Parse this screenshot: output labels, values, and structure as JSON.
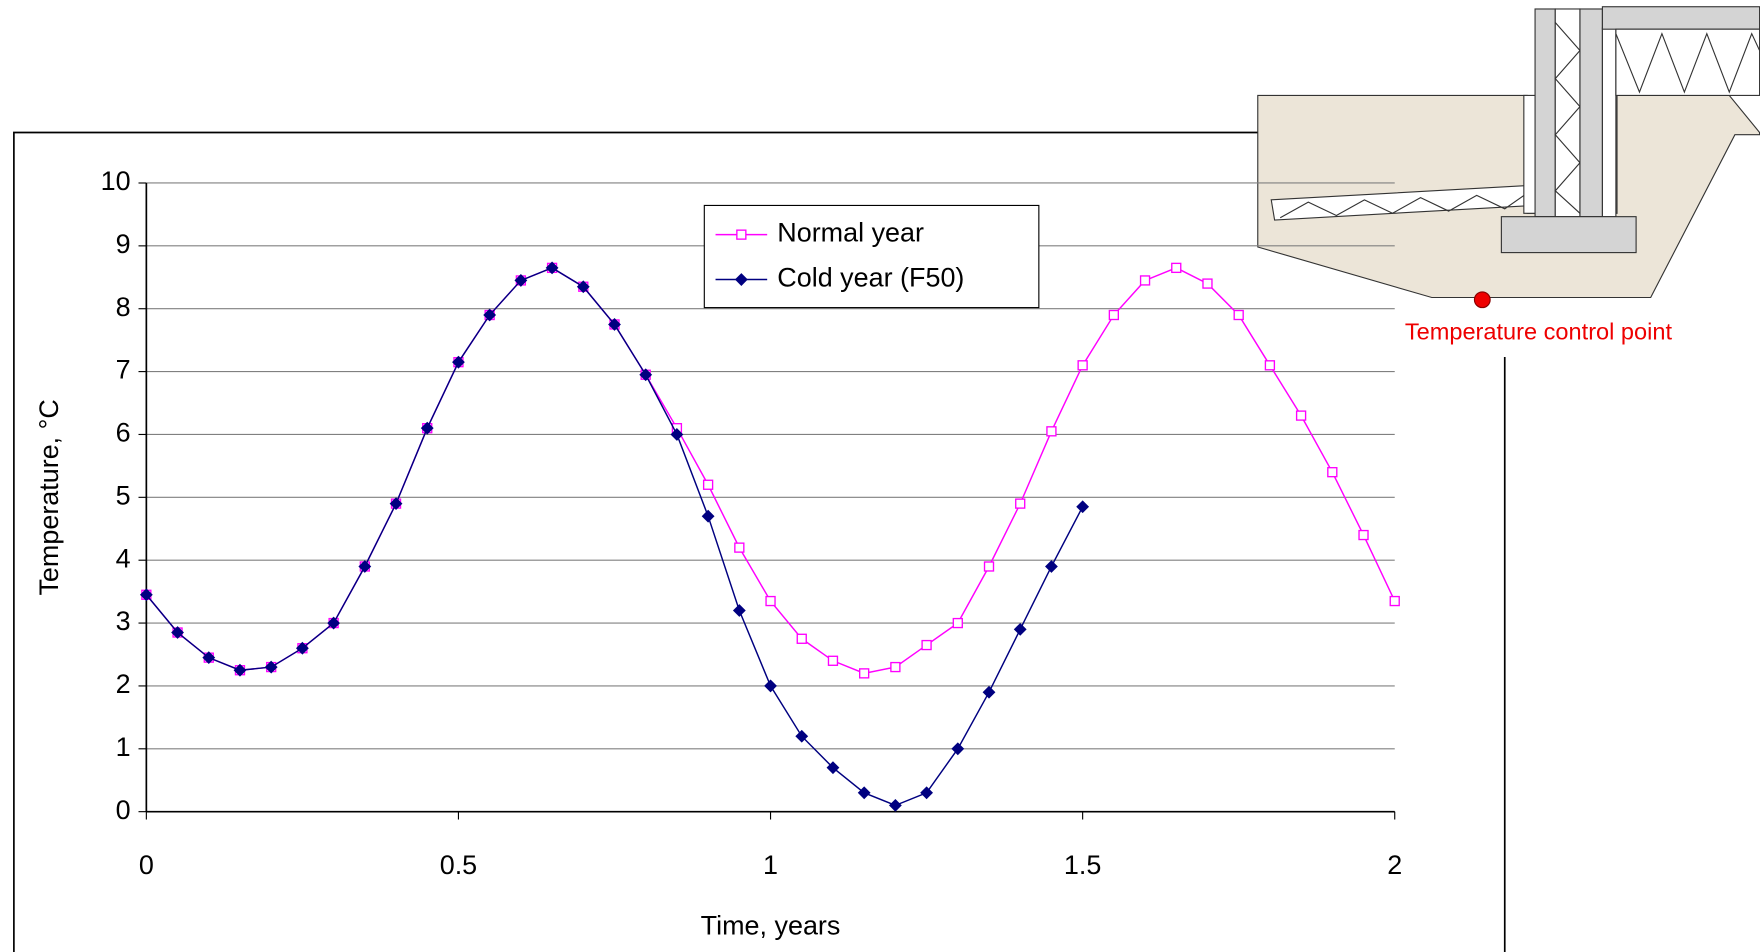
{
  "chart_data": {
    "type": "line",
    "xlabel": "Time, years",
    "ylabel": "Temperature, °C",
    "annotation": "Temperature control point",
    "x": [
      0,
      0.05,
      0.1,
      0.15,
      0.2,
      0.25,
      0.3,
      0.35,
      0.4,
      0.45,
      0.5,
      0.55,
      0.6,
      0.65,
      0.7,
      0.75,
      0.8,
      0.85,
      0.9,
      0.95,
      1,
      1.05,
      1.1,
      1.15,
      1.2,
      1.25,
      1.3,
      1.35,
      1.4,
      1.45,
      1.5,
      1.55,
      1.6,
      1.65,
      1.7,
      1.75,
      1.8,
      1.85,
      1.9,
      1.95,
      2
    ],
    "series": [
      {
        "name": "Normal year",
        "color": "#ff00ff",
        "marker": "square",
        "values": [
          3.45,
          2.85,
          2.45,
          2.25,
          2.3,
          2.6,
          3.0,
          3.9,
          4.9,
          6.1,
          7.15,
          7.9,
          8.45,
          8.65,
          8.35,
          7.75,
          6.95,
          6.1,
          5.2,
          4.2,
          3.35,
          2.75,
          2.4,
          2.2,
          2.3,
          2.65,
          3.0,
          3.9,
          4.9,
          6.05,
          7.1,
          7.9,
          8.45,
          8.65,
          8.4,
          7.9,
          7.1,
          6.3,
          5.4,
          4.4,
          3.35
        ]
      },
      {
        "name": "Cold year (F50)",
        "color": "#000080",
        "marker": "diamond",
        "values": [
          3.45,
          2.85,
          2.45,
          2.25,
          2.3,
          2.6,
          3.0,
          3.9,
          4.9,
          6.1,
          7.15,
          7.9,
          8.45,
          8.65,
          8.35,
          7.75,
          6.95,
          6.0,
          4.7,
          3.2,
          2.0,
          1.2,
          0.7,
          0.3,
          0.1,
          0.3,
          1.0,
          1.9,
          2.9,
          3.9,
          4.85,
          null,
          null,
          null,
          null,
          null,
          null,
          null,
          null,
          null,
          null
        ]
      }
    ],
    "xlim": [
      0,
      2
    ],
    "xticks": [
      0,
      0.5,
      1,
      1.5,
      2
    ],
    "ylim": [
      0,
      10
    ],
    "yticks": [
      0,
      1,
      2,
      3,
      4,
      5,
      6,
      7,
      8,
      9,
      10
    ],
    "grid": true,
    "legend": "upper center"
  }
}
